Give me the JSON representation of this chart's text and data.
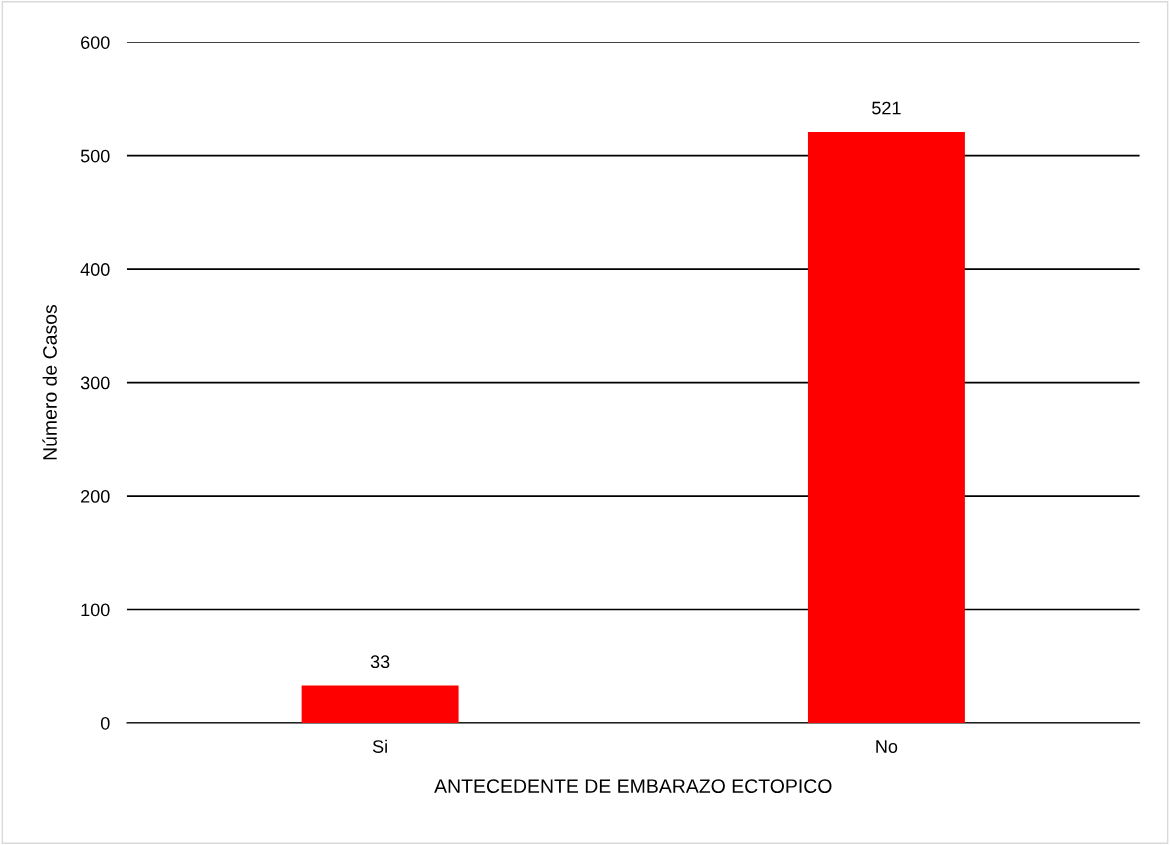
{
  "chart_data": {
    "type": "bar",
    "xlabel": "ANTECEDENTE DE EMBARAZO ECTOPICO",
    "ylabel": "Número de Casos",
    "categories": [
      "Si",
      "No"
    ],
    "values": [
      33,
      521
    ],
    "color": "#ff0000",
    "ylim": [
      0,
      600
    ],
    "yticks": [
      0,
      100,
      200,
      300,
      400,
      500,
      600
    ],
    "grid": "y",
    "data_labels": true
  }
}
